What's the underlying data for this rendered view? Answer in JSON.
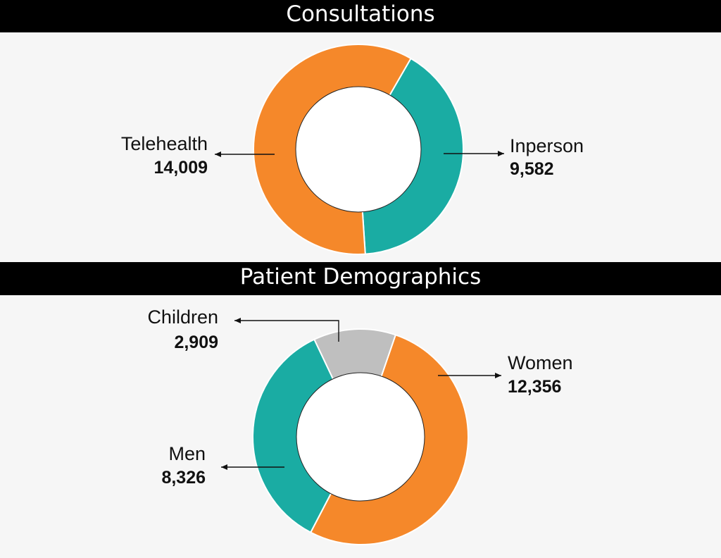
{
  "colors": {
    "orange": "#f5882a",
    "teal": "#1aaca3",
    "gray": "#bfbfbf",
    "hole": "#ffffff"
  },
  "chart_data": [
    {
      "type": "pie",
      "variant": "donut",
      "title": "Consultations",
      "slices": [
        {
          "label": "Inperson",
          "value": "9,582",
          "number": 9582,
          "color": "#1aaca3"
        },
        {
          "label": "Telehealth",
          "value": "14,009",
          "number": 14009,
          "color": "#f5882a"
        }
      ]
    },
    {
      "type": "pie",
      "variant": "donut",
      "title": "Patient Demographics",
      "slices": [
        {
          "label": "Women",
          "value": "12,356",
          "number": 12356,
          "color": "#f5882a"
        },
        {
          "label": "Men",
          "value": "8,326",
          "number": 8326,
          "color": "#1aaca3"
        },
        {
          "label": "Children",
          "value": "2,909",
          "number": 2909,
          "color": "#bfbfbf"
        }
      ]
    }
  ]
}
